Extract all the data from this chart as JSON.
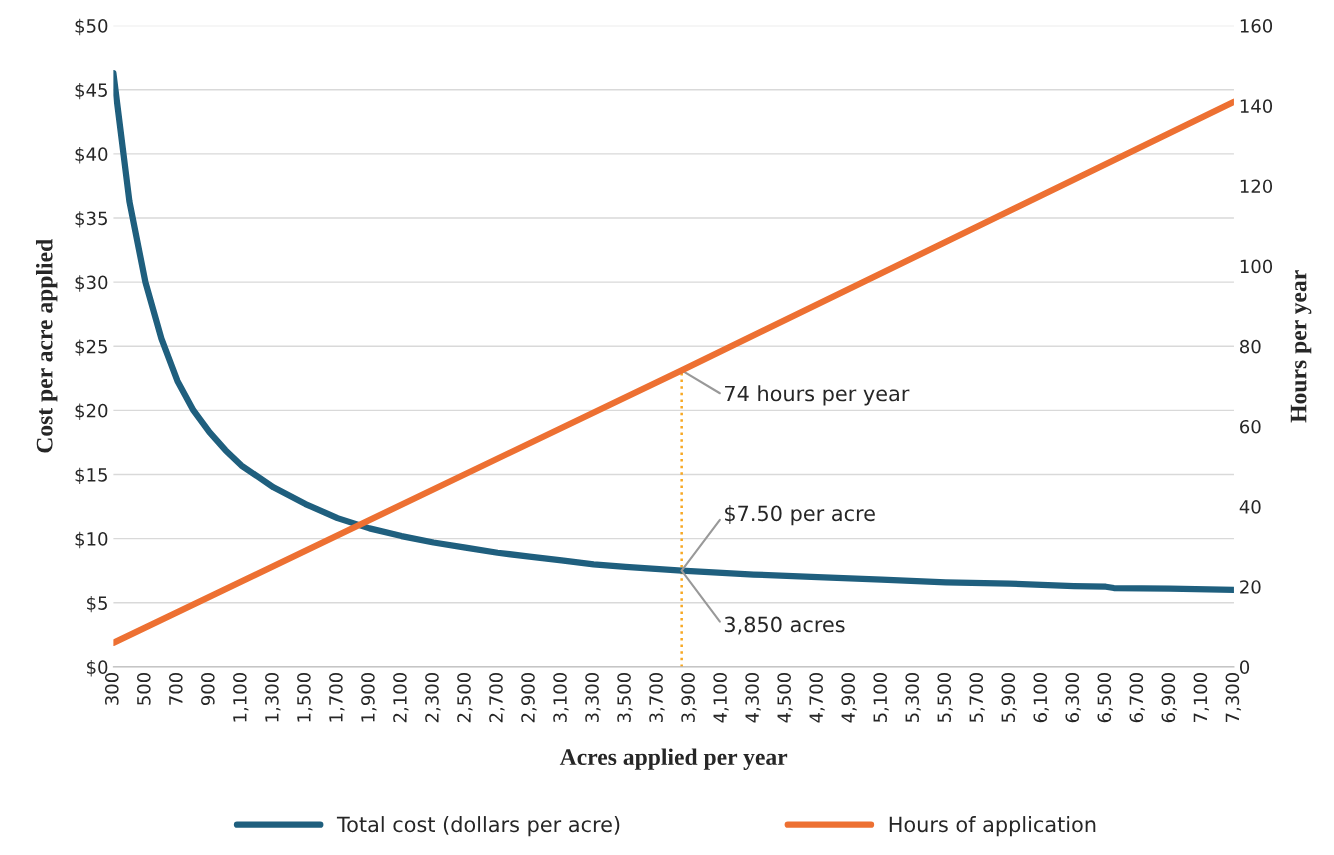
{
  "chart_data": {
    "type": "line",
    "xlabel": "Acres applied per year",
    "ylabel": "Cost per acre applied",
    "y2label": "Hours per year",
    "xlim": [
      300,
      7300
    ],
    "xticks": [
      300,
      500,
      700,
      900,
      {
        "value": 1100,
        "label": "1,100"
      },
      {
        "value": 1300,
        "label": "1,300"
      },
      {
        "value": 1500,
        "label": "1,500"
      },
      {
        "value": 1700,
        "label": "1,700"
      },
      {
        "value": 1900,
        "label": "1,900"
      },
      {
        "value": 2100,
        "label": "2,100"
      },
      {
        "value": 2300,
        "label": "2,300"
      },
      {
        "value": 2500,
        "label": "2,500"
      },
      {
        "value": 2700,
        "label": "2,700"
      },
      {
        "value": 2900,
        "label": "2,900"
      },
      {
        "value": 3100,
        "label": "3,100"
      },
      {
        "value": 3300,
        "label": "3,300"
      },
      {
        "value": 3500,
        "label": "3,500"
      },
      {
        "value": 3700,
        "label": "3,700"
      },
      {
        "value": 3900,
        "label": "3,900"
      },
      {
        "value": 4100,
        "label": "4,100"
      },
      {
        "value": 4300,
        "label": "4,300"
      },
      {
        "value": 4500,
        "label": "4,500"
      },
      {
        "value": 4700,
        "label": "4,700"
      },
      {
        "value": 4900,
        "label": "4,900"
      },
      {
        "value": 5100,
        "label": "5,100"
      },
      {
        "value": 5300,
        "label": "5,300"
      },
      {
        "value": 5500,
        "label": "5,500"
      },
      {
        "value": 5700,
        "label": "5,700"
      },
      {
        "value": 5900,
        "label": "5,900"
      },
      {
        "value": 6100,
        "label": "6,100"
      },
      {
        "value": 6300,
        "label": "6,300"
      },
      {
        "value": 6500,
        "label": "6,500"
      },
      {
        "value": 6700,
        "label": "6,700"
      },
      {
        "value": 6900,
        "label": "6,900"
      },
      {
        "value": 7100,
        "label": "7,100"
      },
      {
        "value": 7300,
        "label": "7,300"
      }
    ],
    "ylim": [
      0,
      50
    ],
    "yticks": [
      {
        "value": 0,
        "label": "$0"
      },
      {
        "value": 5,
        "label": "$5"
      },
      {
        "value": 10,
        "label": "$10"
      },
      {
        "value": 15,
        "label": "$15"
      },
      {
        "value": 20,
        "label": "$20"
      },
      {
        "value": 25,
        "label": "$25"
      },
      {
        "value": 30,
        "label": "$30"
      },
      {
        "value": 35,
        "label": "$35"
      },
      {
        "value": 40,
        "label": "$40"
      },
      {
        "value": 45,
        "label": "$45"
      },
      {
        "value": 50,
        "label": "$50"
      }
    ],
    "y2lim": [
      0,
      160
    ],
    "y2ticks": [
      0,
      20,
      40,
      60,
      80,
      100,
      120,
      140,
      160
    ],
    "grid": "y",
    "legend": "bottom",
    "marker": "none",
    "line_style": "solid",
    "series": [
      {
        "name": "Total cost (dollars per acre)",
        "color": "#1f5f7e",
        "x": [
          300,
          400,
          500,
          600,
          700,
          800,
          900,
          1000,
          1100,
          1300,
          1500,
          1700,
          1900,
          2100,
          2300,
          2500,
          2700,
          2900,
          3100,
          3300,
          3500,
          3850,
          4300,
          4700,
          5100,
          5500,
          5900,
          6300,
          6500,
          6550,
          6900,
          7300
        ],
        "values": [
          46.3,
          36.3,
          30.0,
          25.6,
          22.3,
          20.0,
          18.3,
          16.9,
          15.7,
          14.0,
          12.7,
          11.6,
          10.8,
          10.2,
          9.7,
          9.3,
          8.9,
          8.6,
          8.3,
          8.0,
          7.8,
          7.5,
          7.2,
          7.0,
          6.8,
          6.6,
          6.5,
          6.3,
          6.25,
          6.15,
          6.1,
          6.0
        ]
      },
      {
        "name": "Hours of application",
        "color": "#ed7032",
        "axis": "y2",
        "x": [
          300,
          3850,
          7300
        ],
        "values": [
          6,
          74,
          141
        ]
      }
    ],
    "ref_lines": [
      {
        "axis": "x",
        "value": 3850,
        "color": "#f7a823",
        "line_style": "dotted",
        "label": "74 hours per year"
      }
    ],
    "annotations": [
      {
        "text": "$7.50 per acre",
        "x": 3850,
        "y": 7.5
      },
      {
        "text": "3,850 acres",
        "x": 3850,
        "y": 7.5
      }
    ]
  }
}
